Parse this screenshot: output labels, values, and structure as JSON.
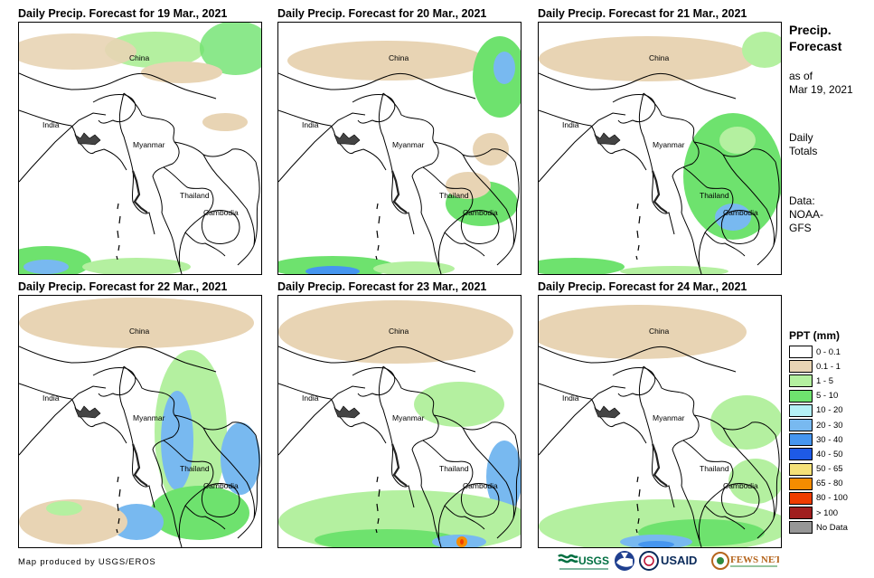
{
  "panels": [
    {
      "title": "Daily Precip. Forecast for 19 Mar., 2021"
    },
    {
      "title": "Daily Precip. Forecast for 20 Mar., 2021"
    },
    {
      "title": "Daily Precip. Forecast for 21 Mar., 2021"
    },
    {
      "title": "Daily Precip. Forecast for 22 Mar., 2021"
    },
    {
      "title": "Daily Precip. Forecast for 23 Mar., 2021"
    },
    {
      "title": "Daily Precip. Forecast for 24 Mar., 2021"
    }
  ],
  "map_labels": {
    "china": "China",
    "india": "India",
    "myanmar": "Myanmar",
    "thailand": "Thailand",
    "cambodia": "Cambodia"
  },
  "sidebar": {
    "title_line1": "Precip.",
    "title_line2": "Forecast",
    "asof_line1": "as of",
    "asof_line2": "Mar 19, 2021",
    "daily_line1": "Daily",
    "daily_line2": "Totals",
    "data_line1": "Data:",
    "data_line2": "NOAA-",
    "data_line3": "GFS"
  },
  "legend": {
    "title": "PPT (mm)",
    "items": [
      {
        "label": "0 - 0.1",
        "color": "#ffffff"
      },
      {
        "label": "0.1 - 1",
        "color": "#e8d4b4"
      },
      {
        "label": "1 - 5",
        "color": "#b4f0a0"
      },
      {
        "label": "5 - 10",
        "color": "#6ee26e"
      },
      {
        "label": "10 - 20",
        "color": "#b4f0f5"
      },
      {
        "label": "20 - 30",
        "color": "#78b9f0"
      },
      {
        "label": "30 - 40",
        "color": "#4696f0"
      },
      {
        "label": "40 - 50",
        "color": "#1e5ae6"
      },
      {
        "label": "50 - 65",
        "color": "#f5e178"
      },
      {
        "label": "65 - 80",
        "color": "#f58c00"
      },
      {
        "label": "80 - 100",
        "color": "#f03c00"
      },
      {
        "label": "> 100",
        "color": "#a01e1e"
      },
      {
        "label": "No Data",
        "color": "#969696"
      }
    ]
  },
  "footer": {
    "credit": "Map produced by USGS/EROS"
  },
  "logos": {
    "usgs": "USGS",
    "usaid": "USAID",
    "fewsnet": "FEWS NET"
  }
}
